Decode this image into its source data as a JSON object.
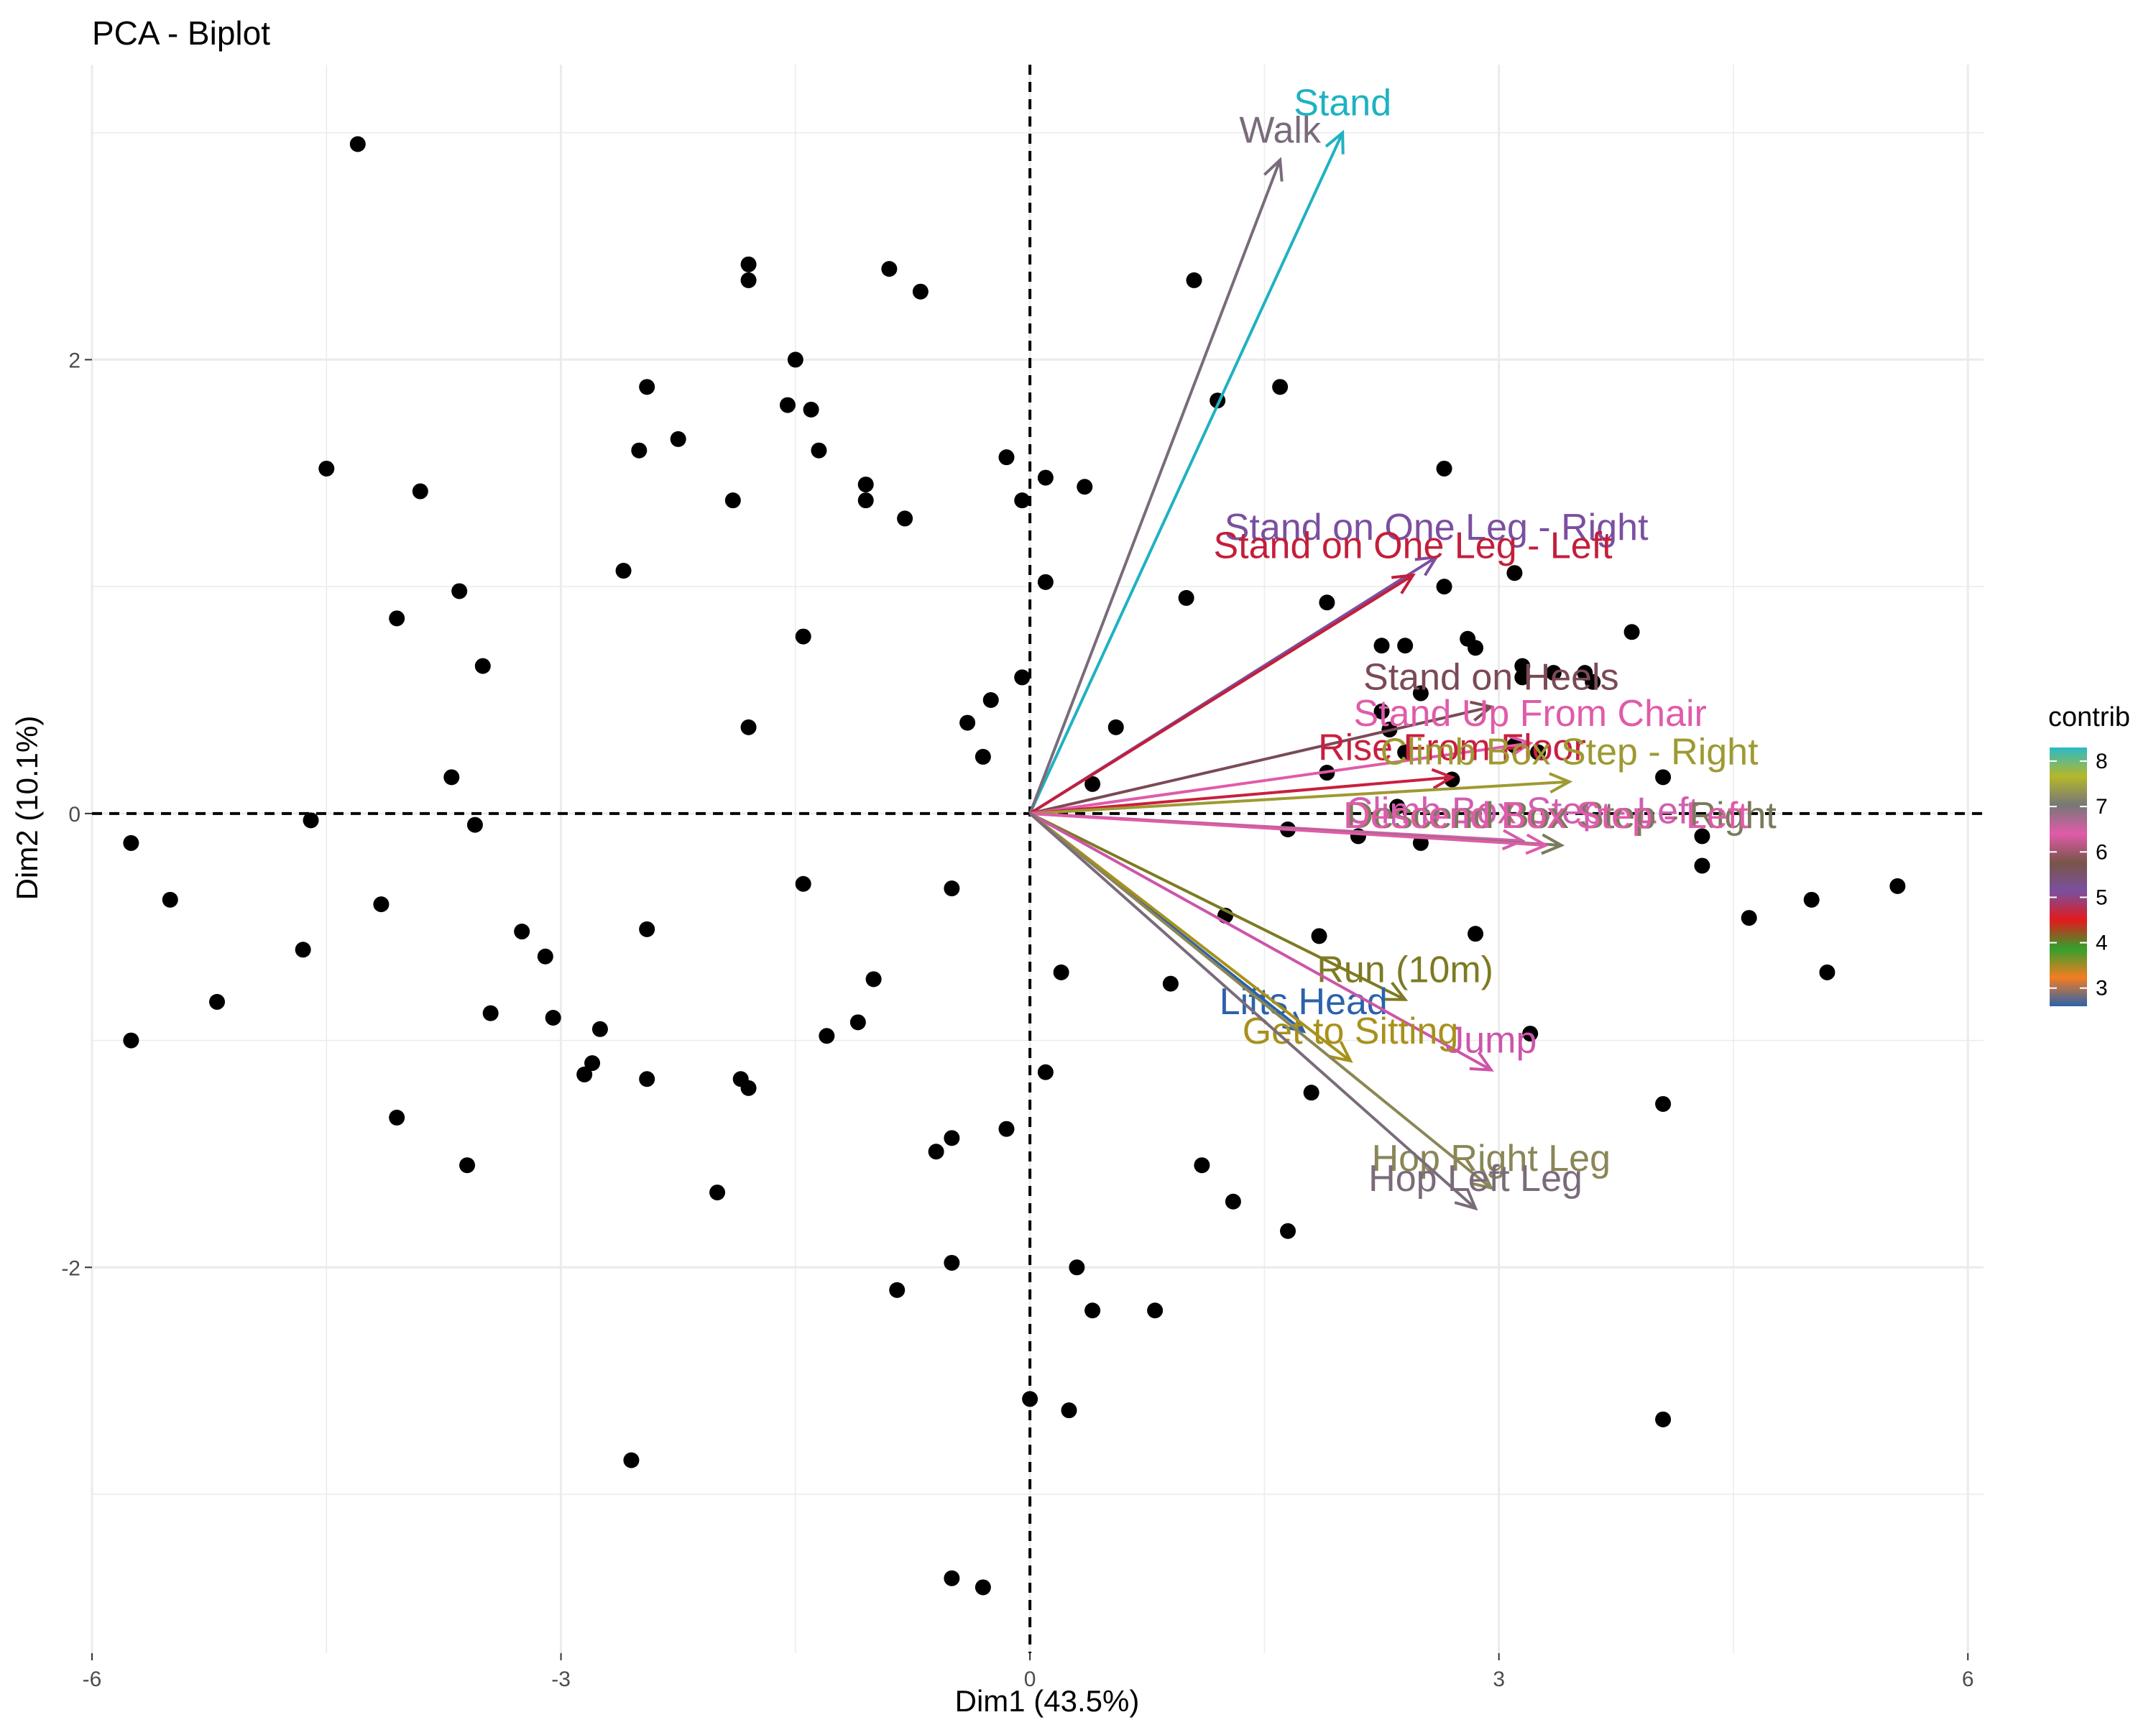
{
  "chart_data": {
    "type": "scatter",
    "subtype": "pca-biplot",
    "title": "PCA - Biplot",
    "xlabel": "Dim1 (43.5%)",
    "ylabel": "Dim2 (10.1%)",
    "xlim": [
      -6.0,
      6.1
    ],
    "ylim": [
      -3.7,
      3.3
    ],
    "x_ticks": [
      -6,
      -3,
      0,
      3,
      6
    ],
    "y_ticks": [
      -2,
      0,
      2
    ],
    "grid": true,
    "reference_lines": [
      0,
      0
    ],
    "legend": {
      "title": "contrib",
      "placement": "right",
      "min": 2.6,
      "max": 8.3,
      "ticks": [
        3,
        4,
        5,
        6,
        7,
        8
      ],
      "gradient": [
        "#2C62AB",
        "#F37D21",
        "#33A02C",
        "#E31A1C",
        "#7B4FA0",
        "#795548",
        "#E05BAA",
        "#777777",
        "#B5B82A",
        "#2ABAC7"
      ]
    },
    "points": [
      [
        -4.3,
        2.95
      ],
      [
        -1.8,
        2.42
      ],
      [
        -1.8,
        2.35
      ],
      [
        -0.9,
        2.4
      ],
      [
        -0.7,
        2.3
      ],
      [
        1.05,
        2.35
      ],
      [
        -1.5,
        2.0
      ],
      [
        -2.45,
        1.88
      ],
      [
        -1.55,
        1.8
      ],
      [
        -1.4,
        1.78
      ],
      [
        1.2,
        1.82
      ],
      [
        1.6,
        1.88
      ],
      [
        -2.25,
        1.65
      ],
      [
        -2.5,
        1.6
      ],
      [
        -1.35,
        1.6
      ],
      [
        -0.15,
        1.57
      ],
      [
        -4.5,
        1.52
      ],
      [
        -3.9,
        1.42
      ],
      [
        -1.05,
        1.45
      ],
      [
        -1.05,
        1.38
      ],
      [
        -1.9,
        1.38
      ],
      [
        0.1,
        1.48
      ],
      [
        0.35,
        1.44
      ],
      [
        -0.05,
        1.38
      ],
      [
        -0.8,
        1.3
      ],
      [
        2.65,
        1.52
      ],
      [
        -2.6,
        1.07
      ],
      [
        0.1,
        1.02
      ],
      [
        3.1,
        1.06
      ],
      [
        2.65,
        1.0
      ],
      [
        -3.65,
        0.98
      ],
      [
        -4.05,
        0.86
      ],
      [
        1.0,
        0.95
      ],
      [
        1.9,
        0.93
      ],
      [
        2.25,
        0.74
      ],
      [
        2.4,
        0.74
      ],
      [
        2.8,
        0.77
      ],
      [
        2.85,
        0.73
      ],
      [
        -1.45,
        0.78
      ],
      [
        3.85,
        0.8
      ],
      [
        -3.5,
        0.65
      ],
      [
        3.15,
        0.65
      ],
      [
        3.15,
        0.6
      ],
      [
        3.35,
        0.62
      ],
      [
        3.55,
        0.62
      ],
      [
        3.6,
        0.58
      ],
      [
        -0.05,
        0.6
      ],
      [
        2.5,
        0.53
      ],
      [
        -0.25,
        0.5
      ],
      [
        2.25,
        0.45
      ],
      [
        -1.8,
        0.38
      ],
      [
        -0.4,
        0.4
      ],
      [
        0.55,
        0.38
      ],
      [
        2.3,
        0.37
      ],
      [
        3.1,
        0.3
      ],
      [
        2.4,
        0.27
      ],
      [
        3.25,
        0.27
      ],
      [
        -0.3,
        0.25
      ],
      [
        -3.7,
        0.16
      ],
      [
        1.9,
        0.18
      ],
      [
        4.05,
        0.16
      ],
      [
        0.4,
        0.13
      ],
      [
        2.7,
        0.15
      ],
      [
        2.35,
        0.03
      ],
      [
        -4.6,
        -0.03
      ],
      [
        -3.55,
        -0.05
      ],
      [
        1.65,
        -0.07
      ],
      [
        2.1,
        -0.1
      ],
      [
        2.5,
        -0.13
      ],
      [
        4.3,
        -0.1
      ],
      [
        -5.75,
        -0.13
      ],
      [
        -1.45,
        -0.31
      ],
      [
        -0.5,
        -0.33
      ],
      [
        4.3,
        -0.23
      ],
      [
        5.55,
        -0.32
      ],
      [
        -5.5,
        -0.38
      ],
      [
        -4.15,
        -0.4
      ],
      [
        5.0,
        -0.38
      ],
      [
        1.25,
        -0.45
      ],
      [
        4.6,
        -0.46
      ],
      [
        -3.25,
        -0.52
      ],
      [
        -2.45,
        -0.51
      ],
      [
        1.85,
        -0.54
      ],
      [
        2.85,
        -0.53
      ],
      [
        -4.65,
        -0.6
      ],
      [
        -3.1,
        -0.63
      ],
      [
        0.2,
        -0.7
      ],
      [
        5.1,
        -0.7
      ],
      [
        -1.0,
        -0.73
      ],
      [
        -5.2,
        -0.83
      ],
      [
        -3.45,
        -0.88
      ],
      [
        -3.05,
        -0.9
      ],
      [
        0.9,
        -0.75
      ],
      [
        -1.1,
        -0.92
      ],
      [
        -2.75,
        -0.95
      ],
      [
        -1.3,
        -0.98
      ],
      [
        3.2,
        -0.97
      ],
      [
        -5.75,
        -1.0
      ],
      [
        -2.8,
        -1.1
      ],
      [
        -2.85,
        -1.15
      ],
      [
        -2.45,
        -1.17
      ],
      [
        -1.85,
        -1.17
      ],
      [
        -1.8,
        -1.21
      ],
      [
        0.1,
        -1.14
      ],
      [
        1.8,
        -1.23
      ],
      [
        4.05,
        -1.28
      ],
      [
        -4.05,
        -1.34
      ],
      [
        -0.15,
        -1.39
      ],
      [
        -0.5,
        -1.43
      ],
      [
        -0.6,
        -1.49
      ],
      [
        1.1,
        -1.55
      ],
      [
        -3.6,
        -1.55
      ],
      [
        1.3,
        -1.71
      ],
      [
        -2.0,
        -1.67
      ],
      [
        1.65,
        -1.84
      ],
      [
        -0.5,
        -1.98
      ],
      [
        0.3,
        -2.0
      ],
      [
        -0.85,
        -2.1
      ],
      [
        0.4,
        -2.19
      ],
      [
        0.8,
        -2.19
      ],
      [
        0.0,
        -2.58
      ],
      [
        0.25,
        -2.63
      ],
      [
        4.05,
        -2.67
      ],
      [
        -2.55,
        -2.85
      ],
      [
        -0.5,
        -3.37
      ],
      [
        -0.3,
        -3.41
      ]
    ],
    "variables": [
      {
        "name": "Stand",
        "x": 2.0,
        "y": 3.0,
        "contrib": 8.3,
        "color": "#1EB2C1"
      },
      {
        "name": "Walk",
        "x": 1.6,
        "y": 2.88,
        "contrib": 6.8,
        "color": "#7A6B7B"
      },
      {
        "name": "Stand on One Leg - Right",
        "x": 2.6,
        "y": 1.13,
        "contrib": 5.2,
        "color": "#7B4FA0"
      },
      {
        "name": "Stand on One Leg - Left",
        "x": 2.45,
        "y": 1.05,
        "contrib": 4.7,
        "color": "#C41E3A"
      },
      {
        "name": "Stand on Heels",
        "x": 2.95,
        "y": 0.47,
        "contrib": 5.6,
        "color": "#7B4A55"
      },
      {
        "name": "Stand Up From Chair",
        "x": 3.2,
        "y": 0.31,
        "contrib": 6.2,
        "color": "#E05BAA"
      },
      {
        "name": "Rise From Floor",
        "x": 2.7,
        "y": 0.16,
        "contrib": 4.8,
        "color": "#C8203F"
      },
      {
        "name": "Climb Box Step - Right",
        "x": 3.45,
        "y": 0.14,
        "contrib": 7.6,
        "color": "#9E9A32"
      },
      {
        "name": "Climb Box Step - Left",
        "x": 3.15,
        "y": -0.12,
        "contrib": 6.3,
        "color": "#D05FAF"
      },
      {
        "name": "Descend Box Step - Right",
        "x": 3.4,
        "y": -0.14,
        "contrib": 7.2,
        "color": "#7A7A5C"
      },
      {
        "name": "Descend Box Step - Left",
        "x": 3.3,
        "y": -0.14,
        "contrib": 6.0,
        "color": "#E05BAA"
      },
      {
        "name": "Run (10m)",
        "x": 2.4,
        "y": -0.82,
        "contrib": 7.4,
        "color": "#7D7A22"
      },
      {
        "name": "Lifts Head",
        "x": 1.75,
        "y": -0.96,
        "contrib": 2.7,
        "color": "#2C62AB"
      },
      {
        "name": "Jump",
        "x": 2.95,
        "y": -1.13,
        "contrib": 6.1,
        "color": "#CC55AA"
      },
      {
        "name": "Get to Sitting",
        "x": 2.05,
        "y": -1.09,
        "contrib": 7.5,
        "color": "#A8911B"
      },
      {
        "name": "Hop Right Leg",
        "x": 2.95,
        "y": -1.65,
        "contrib": 7.2,
        "color": "#8A8657"
      },
      {
        "name": "Hop Left Leg",
        "x": 2.85,
        "y": -1.74,
        "contrib": 6.9,
        "color": "#7A6B7B"
      }
    ]
  }
}
